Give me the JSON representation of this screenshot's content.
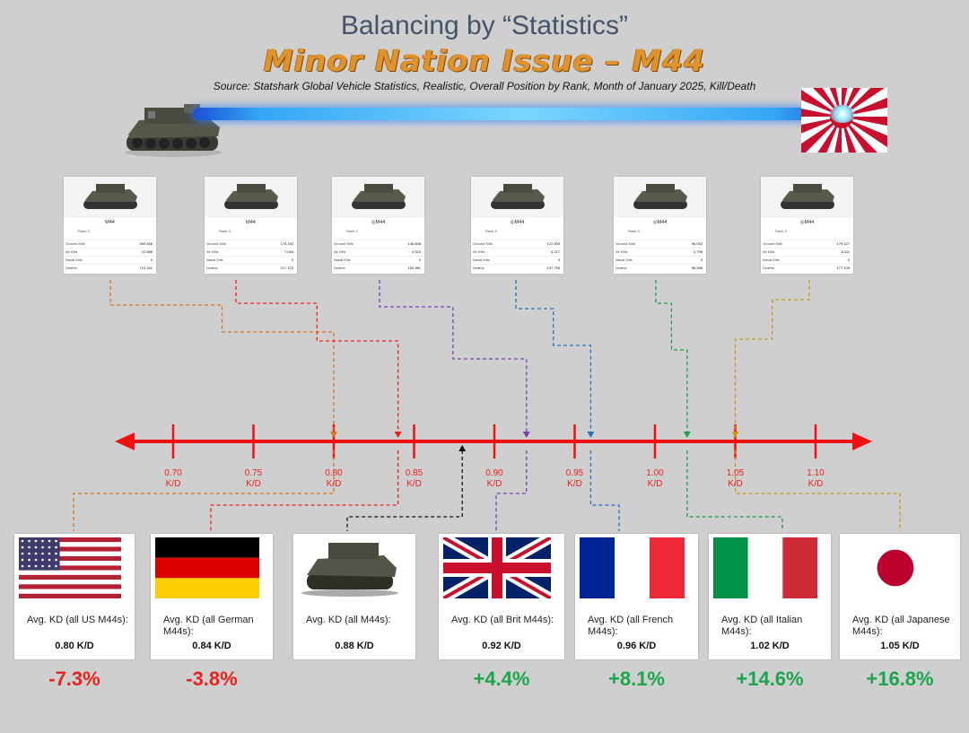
{
  "header": {
    "title": "Balancing by “Statistics”",
    "subtitle": "Minor Nation Issue – M44",
    "source": "Source: Statshark Global Vehicle Statistics, Realistic, Overall Position by Rank, Month of January 2025, Kill/Death"
  },
  "colors": {
    "axis": "#ee1111",
    "negative": "#e8221c",
    "positive": "#1aa64a",
    "title": "#44546a",
    "subtitle": "#e0932a"
  },
  "stat_cards": [
    {
      "name": "M44",
      "rank": "Rank 3",
      "rows": [
        {
          "label": "Ground Kills",
          "value": "559,838"
        },
        {
          "label": "Air Kills",
          "value": "12,988"
        },
        {
          "label": "Naval Kills",
          "value": "0"
        },
        {
          "label": "Deaths",
          "value": "712,161"
        }
      ]
    },
    {
      "name": "M44",
      "rank": "Rank 3",
      "rows": [
        {
          "label": "Ground Kills",
          "value": "175,152"
        },
        {
          "label": "Air Kills",
          "value": "7,044"
        },
        {
          "label": "Naval Kills",
          "value": "0"
        },
        {
          "label": "Deaths",
          "value": "217,122"
        }
      ]
    },
    {
      "name": "◎M44",
      "rank": "Rank 3",
      "rows": [
        {
          "label": "Ground Kills",
          "value": "146,848"
        },
        {
          "label": "Air Kills",
          "value": "4,310"
        },
        {
          "label": "Naval Kills",
          "value": "0"
        },
        {
          "label": "Deaths",
          "value": "162,981"
        }
      ]
    },
    {
      "name": "◎M44",
      "rank": "Rank 3",
      "rows": [
        {
          "label": "Ground Kills",
          "value": "127,905"
        },
        {
          "label": "Air Kills",
          "value": "4,217"
        },
        {
          "label": "Naval Kills",
          "value": "0"
        },
        {
          "label": "Deaths",
          "value": "137,796"
        }
      ]
    },
    {
      "name": "◎M44",
      "rank": "Rank 3",
      "rows": [
        {
          "label": "Ground Kills",
          "value": "96,052"
        },
        {
          "label": "Air Kills",
          "value": "2,798"
        },
        {
          "label": "Naval Kills",
          "value": "0"
        },
        {
          "label": "Deaths",
          "value": "96,058"
        }
      ]
    },
    {
      "name": "◎M44",
      "rank": "Rank 3",
      "rows": [
        {
          "label": "Ground Kills",
          "value": "179,127"
        },
        {
          "label": "Air Kills",
          "value": "6,111"
        },
        {
          "label": "Naval Kills",
          "value": "0"
        },
        {
          "label": "Deaths",
          "value": "177,109"
        }
      ]
    }
  ],
  "chart_data": {
    "type": "number-line",
    "title": "Balancing by “Statistics”",
    "axis": {
      "ticks": [
        0.7,
        0.75,
        0.8,
        0.85,
        0.9,
        0.95,
        1.0,
        1.05,
        1.1
      ],
      "tick_labels": [
        "0.70",
        "0.75",
        "0.80",
        "0.85",
        "0.90",
        "0.95",
        "1.00",
        "1.05",
        "1.10"
      ],
      "unit": "K/D",
      "range": [
        0.65,
        1.15
      ]
    },
    "markers": [
      {
        "nation": "US",
        "kd": 0.8,
        "color": "#d9751e",
        "side": "top"
      },
      {
        "nation": "German",
        "kd": 0.84,
        "color": "#e8221c",
        "side": "top"
      },
      {
        "nation": "Average",
        "kd": 0.88,
        "color": "#111111",
        "side": "bottom"
      },
      {
        "nation": "Brit",
        "kd": 0.92,
        "color": "#7b3fb3",
        "side": "top"
      },
      {
        "nation": "French",
        "kd": 0.96,
        "color": "#2a6fb8",
        "side": "top"
      },
      {
        "nation": "Italian",
        "kd": 1.02,
        "color": "#18a04a",
        "side": "top"
      },
      {
        "nation": "Japanese",
        "kd": 1.05,
        "color": "#c9961a",
        "side": "top"
      }
    ]
  },
  "summary": [
    {
      "flag": "us-flag",
      "label": "Avg. KD (all US M44s):",
      "value": "0.80 K/D",
      "change": "-7.3%",
      "sign": "neg"
    },
    {
      "flag": "germany-flag",
      "label": "Avg. KD (all German M44s):",
      "value": "0.84 K/D",
      "change": "-3.8%",
      "sign": "neg"
    },
    {
      "flag": "tank-image",
      "label": "Avg. KD (all M44s):",
      "value": "0.88 K/D",
      "change": "",
      "sign": "none"
    },
    {
      "flag": "uk-flag",
      "label": "Avg. KD (all Brit M44s):",
      "value": "0.92 K/D",
      "change": "+4.4%",
      "sign": "pos"
    },
    {
      "flag": "france-flag",
      "label": "Avg. KD (all French M44s):",
      "value": "0.96 K/D",
      "change": "+8.1%",
      "sign": "pos"
    },
    {
      "flag": "italy-flag",
      "label": "Avg. KD (all Italian M44s):",
      "value": "1.02 K/D",
      "change": "+14.6%",
      "sign": "pos"
    },
    {
      "flag": "japan-flag",
      "label": "Avg. KD (all Japanese M44s):",
      "value": "1.05 K/D",
      "change": "+16.8%",
      "sign": "pos"
    }
  ]
}
